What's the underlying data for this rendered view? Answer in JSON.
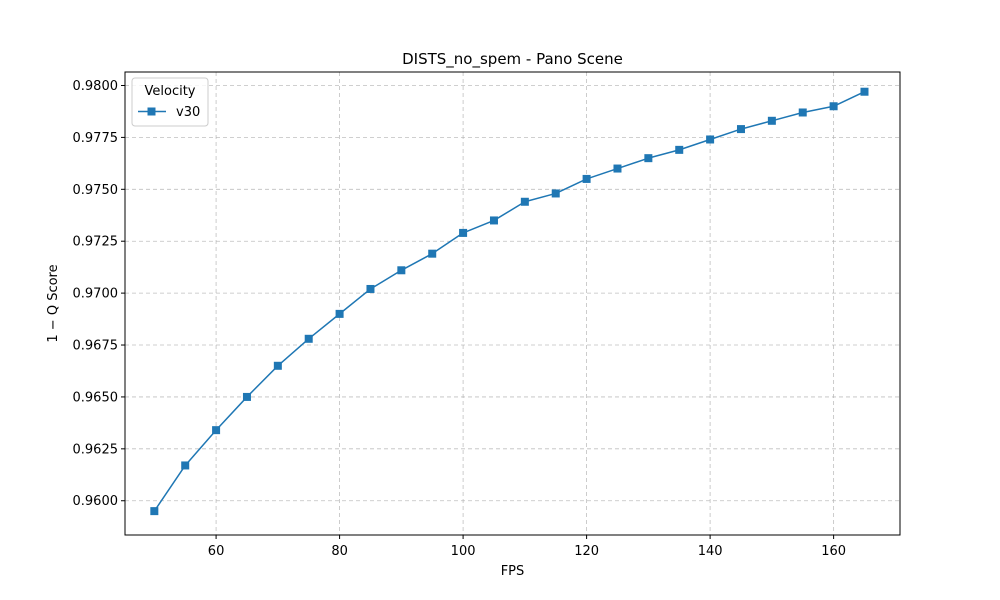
{
  "chart_data": {
    "type": "line",
    "title": "DISTS_no_spem - Pano Scene",
    "xlabel": "FPS",
    "ylabel": "1 − Q Score",
    "xlim": [
      45.25,
      170.75
    ],
    "ylim": [
      0.95835,
      0.98065
    ],
    "xticks": [
      60,
      80,
      100,
      120,
      140,
      160
    ],
    "xtick_labels": [
      "60",
      "80",
      "100",
      "120",
      "140",
      "160"
    ],
    "yticks": [
      0.96,
      0.9625,
      0.965,
      0.9675,
      0.97,
      0.9725,
      0.975,
      0.9775,
      0.98
    ],
    "ytick_labels": [
      "0.9600",
      "0.9625",
      "0.9650",
      "0.9675",
      "0.9700",
      "0.9725",
      "0.9750",
      "0.9775",
      "0.9800"
    ],
    "grid": true,
    "legend": {
      "title": "Velocity",
      "position": "top-left"
    },
    "series": [
      {
        "name": "v30",
        "color": "#1f77b4",
        "marker": "square",
        "x": [
          50,
          55,
          60,
          65,
          70,
          75,
          80,
          85,
          90,
          95,
          100,
          105,
          110,
          115,
          120,
          125,
          130,
          135,
          140,
          145,
          150,
          155,
          160,
          165
        ],
        "y": [
          0.9595,
          0.9617,
          0.9634,
          0.965,
          0.9665,
          0.9678,
          0.969,
          0.9702,
          0.9711,
          0.9719,
          0.9729,
          0.9735,
          0.9744,
          0.9748,
          0.9755,
          0.976,
          0.9765,
          0.9769,
          0.9774,
          0.9779,
          0.9783,
          0.9787,
          0.979,
          0.9797
        ]
      }
    ]
  }
}
